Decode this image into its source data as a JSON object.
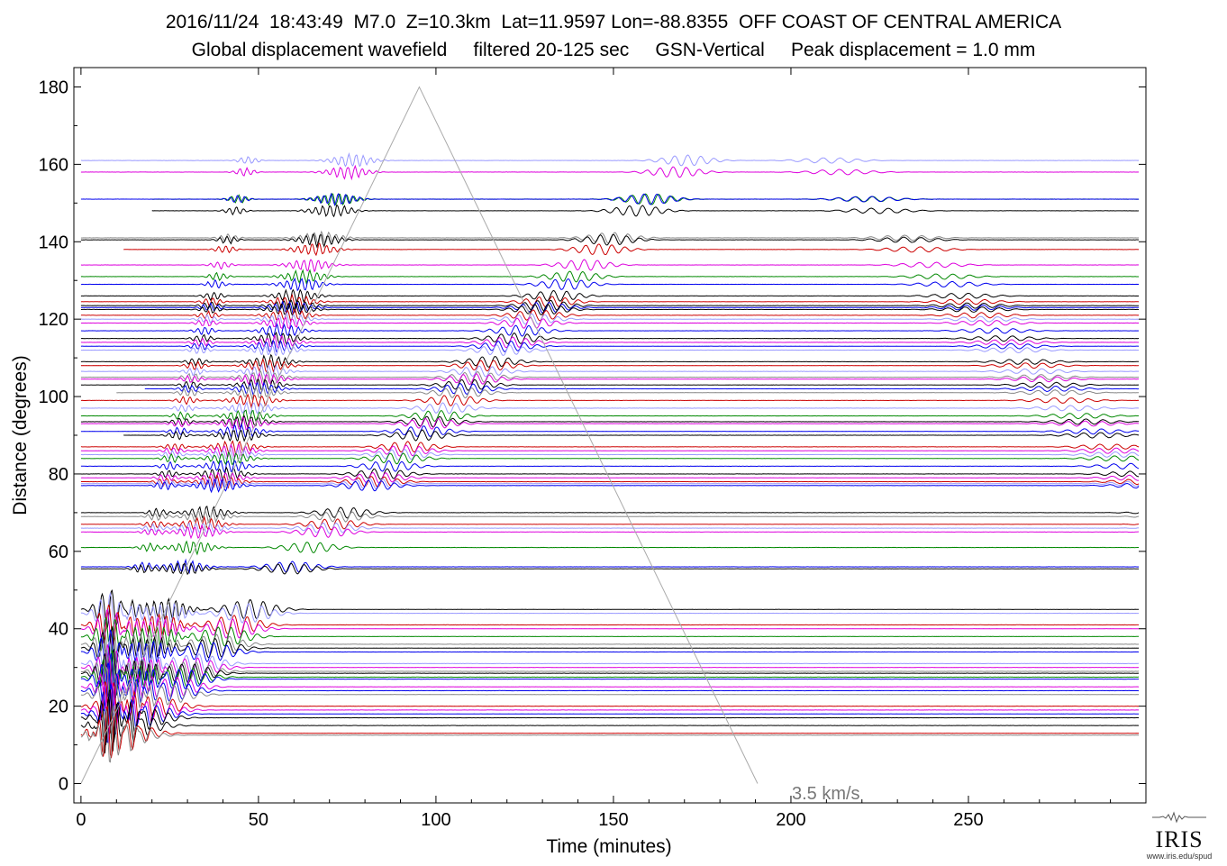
{
  "header": {
    "line1": "2016/11/24  18:43:49  M7.0  Z=10.3km  Lat=11.9597 Lon=-88.8355  OFF COAST OF CENTRAL AMERICA",
    "line2": "Global displacement wavefield     filtered 20-125 sec     GSN-Vertical     Peak displacement = 1.0 mm"
  },
  "logo": {
    "name": "IRIS",
    "url": "www.iris.edu/spud"
  },
  "chart_data": {
    "type": "line",
    "xlabel": "Time (minutes)",
    "ylabel": "Distance (degrees)",
    "xlim": [
      -2,
      300
    ],
    "ylim": [
      -5,
      185
    ],
    "xticks": [
      0,
      50,
      100,
      150,
      200,
      250
    ],
    "yticks": [
      0,
      20,
      40,
      60,
      80,
      100,
      120,
      140,
      160,
      180
    ],
    "grid": false,
    "reference_line": {
      "label": "3.5 km/s",
      "points": [
        [
          0,
          0
        ],
        [
          95.3,
          180
        ],
        [
          190.6,
          0
        ]
      ]
    },
    "trace_colors": [
      "#000000",
      "#cc0000",
      "#0000ee",
      "#008800",
      "#dd00dd",
      "#9999ff",
      "#888888"
    ],
    "stations": [
      {
        "dist": 161,
        "start": 0,
        "color": "#9999ff"
      },
      {
        "dist": 158,
        "start": 0,
        "color": "#dd00dd"
      },
      {
        "dist": 151,
        "start": 20,
        "color": "#008800"
      },
      {
        "dist": 151,
        "start": 0,
        "color": "#0000ee"
      },
      {
        "dist": 148,
        "start": 20,
        "color": "#000000"
      },
      {
        "dist": 141,
        "start": 0,
        "color": "#888888"
      },
      {
        "dist": 140.5,
        "start": 0,
        "color": "#000000"
      },
      {
        "dist": 138,
        "start": 12,
        "color": "#cc0000"
      },
      {
        "dist": 134,
        "start": 0,
        "color": "#dd00dd"
      },
      {
        "dist": 131,
        "start": 0,
        "color": "#008800"
      },
      {
        "dist": 129,
        "start": 0,
        "color": "#0000ee"
      },
      {
        "dist": 126,
        "start": 0,
        "color": "#000000"
      },
      {
        "dist": 124.5,
        "start": 0,
        "color": "#cc0000"
      },
      {
        "dist": 123.5,
        "start": 0,
        "color": "#000000"
      },
      {
        "dist": 123,
        "start": 0,
        "color": "#0000ee"
      },
      {
        "dist": 122.5,
        "start": 0,
        "color": "#000000"
      },
      {
        "dist": 121,
        "start": 0,
        "color": "#cc0000"
      },
      {
        "dist": 120,
        "start": 0,
        "color": "#9999ff"
      },
      {
        "dist": 119,
        "start": 0,
        "color": "#dd00dd"
      },
      {
        "dist": 117,
        "start": 0,
        "color": "#0000ee"
      },
      {
        "dist": 115,
        "start": 0,
        "color": "#000000"
      },
      {
        "dist": 114,
        "start": 0,
        "color": "#dd00dd"
      },
      {
        "dist": 113,
        "start": 0,
        "color": "#0000ee"
      },
      {
        "dist": 112,
        "start": 0,
        "color": "#9999ff"
      },
      {
        "dist": 109,
        "start": 0,
        "color": "#000000"
      },
      {
        "dist": 108,
        "start": 0,
        "color": "#cc0000"
      },
      {
        "dist": 106.5,
        "start": 0,
        "color": "#9999ff"
      },
      {
        "dist": 105,
        "start": 0,
        "color": "#888888"
      },
      {
        "dist": 104.5,
        "start": 0,
        "color": "#dd00dd"
      },
      {
        "dist": 103,
        "start": 0,
        "color": "#000000"
      },
      {
        "dist": 102,
        "start": 18,
        "color": "#0000ee"
      },
      {
        "dist": 101,
        "start": 10,
        "color": "#888888"
      },
      {
        "dist": 99,
        "start": 0,
        "color": "#cc0000"
      },
      {
        "dist": 97,
        "start": 0,
        "color": "#9999ff"
      },
      {
        "dist": 95,
        "start": 0,
        "color": "#008800"
      },
      {
        "dist": 93.5,
        "start": 0,
        "color": "#000000"
      },
      {
        "dist": 93,
        "start": 0,
        "color": "#dd00dd"
      },
      {
        "dist": 91,
        "start": 0,
        "color": "#0000ee"
      },
      {
        "dist": 90,
        "start": 12,
        "color": "#000000"
      },
      {
        "dist": 87,
        "start": 0,
        "color": "#cc0000"
      },
      {
        "dist": 86,
        "start": 0,
        "color": "#dd00dd"
      },
      {
        "dist": 85,
        "start": 0,
        "color": "#9999ff"
      },
      {
        "dist": 84,
        "start": 0,
        "color": "#008800"
      },
      {
        "dist": 82,
        "start": 0,
        "color": "#0000ee"
      },
      {
        "dist": 80,
        "start": 0,
        "color": "#000000"
      },
      {
        "dist": 79,
        "start": 0,
        "color": "#dd00dd"
      },
      {
        "dist": 78,
        "start": 0,
        "color": "#cc0000"
      },
      {
        "dist": 77.5,
        "start": 0,
        "color": "#9999ff"
      },
      {
        "dist": 77,
        "start": 0,
        "color": "#0000ee"
      },
      {
        "dist": 70,
        "start": 0,
        "color": "#000000"
      },
      {
        "dist": 69,
        "start": 0,
        "color": "#888888"
      },
      {
        "dist": 67,
        "start": 0,
        "color": "#cc0000"
      },
      {
        "dist": 66,
        "start": 0,
        "color": "#9999ff"
      },
      {
        "dist": 65,
        "start": 0,
        "color": "#dd00dd"
      },
      {
        "dist": 61,
        "start": 0,
        "color": "#008800"
      },
      {
        "dist": 56,
        "start": 0,
        "color": "#0000ee"
      },
      {
        "dist": 55.5,
        "start": 0,
        "color": "#000000"
      },
      {
        "dist": 45,
        "start": 0,
        "color": "#000000"
      },
      {
        "dist": 44,
        "start": 0,
        "color": "#9999ff"
      },
      {
        "dist": 41,
        "start": 0,
        "color": "#cc0000"
      },
      {
        "dist": 40,
        "start": 0,
        "color": "#dd00dd"
      },
      {
        "dist": 38,
        "start": 0,
        "color": "#008800"
      },
      {
        "dist": 36,
        "start": 0,
        "color": "#888888"
      },
      {
        "dist": 35,
        "start": 0,
        "color": "#000000"
      },
      {
        "dist": 34,
        "start": 0,
        "color": "#0000ee"
      },
      {
        "dist": 31,
        "start": 0,
        "color": "#9999ff"
      },
      {
        "dist": 30,
        "start": 0,
        "color": "#dd00dd"
      },
      {
        "dist": 29,
        "start": 0,
        "color": "#888888"
      },
      {
        "dist": 28.5,
        "start": 0,
        "color": "#000000"
      },
      {
        "dist": 27.5,
        "start": 0,
        "color": "#008800"
      },
      {
        "dist": 27,
        "start": 0,
        "color": "#0000ee"
      },
      {
        "dist": 25,
        "start": 0,
        "color": "#dd00dd"
      },
      {
        "dist": 24,
        "start": 0,
        "color": "#0000ee"
      },
      {
        "dist": 23,
        "start": 0,
        "color": "#888888"
      },
      {
        "dist": 20,
        "start": 0,
        "color": "#cc0000"
      },
      {
        "dist": 19,
        "start": 0,
        "color": "#dd00dd"
      },
      {
        "dist": 18,
        "start": 0,
        "color": "#0000ee"
      },
      {
        "dist": 17,
        "start": 0,
        "color": "#000000"
      },
      {
        "dist": 15,
        "start": 0,
        "color": "#000000"
      },
      {
        "dist": 13,
        "start": 0,
        "color": "#cc0000"
      },
      {
        "dist": 12.5,
        "start": 0,
        "color": "#888888"
      }
    ]
  }
}
